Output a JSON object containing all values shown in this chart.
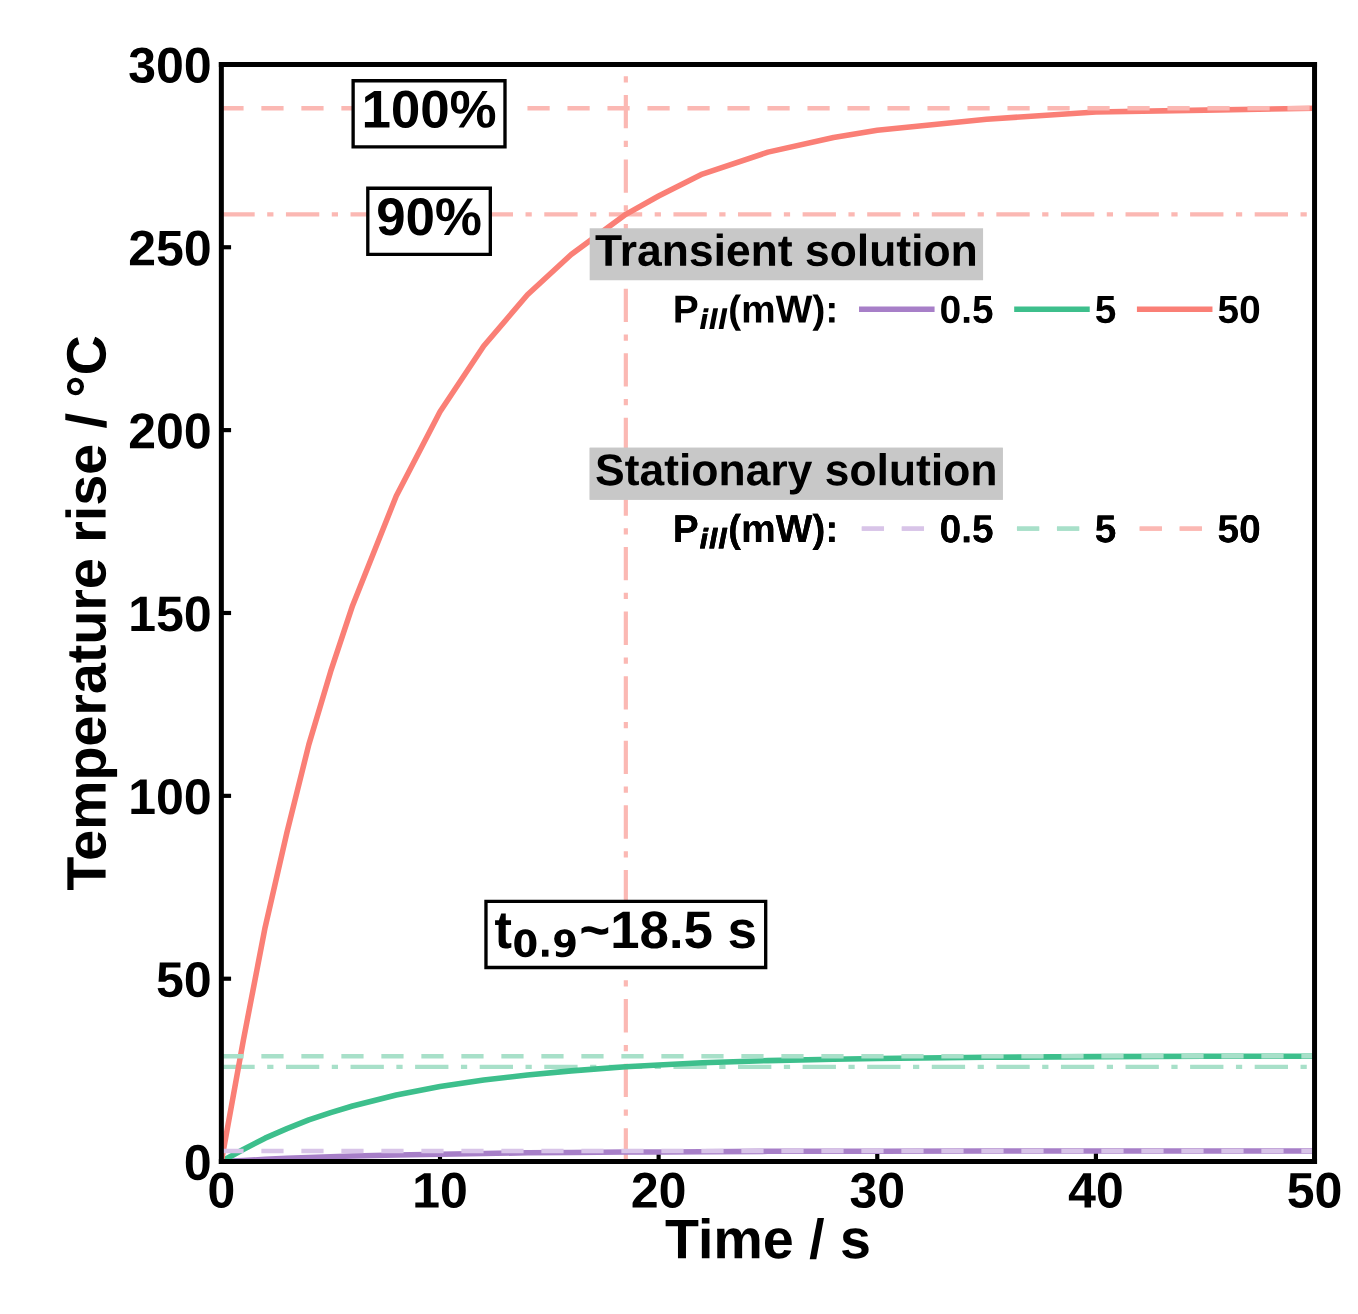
{
  "chart_data": {
    "type": "line",
    "xlabel": "Time / s",
    "ylabel": "Temperature rise / °C",
    "xlim": [
      0,
      50
    ],
    "ylim": [
      0,
      300
    ],
    "xticks": [
      0,
      10,
      20,
      30,
      40,
      50
    ],
    "yticks": [
      0,
      50,
      100,
      150,
      200,
      250,
      300
    ],
    "grid": false,
    "legend": "top right",
    "marker": "none",
    "x": [
      0,
      1,
      2,
      3,
      4,
      5,
      6,
      8,
      10,
      12,
      14,
      16,
      18.5,
      20,
      22,
      25,
      28,
      30,
      35,
      40,
      45,
      50
    ],
    "series": [
      {
        "name": "0.5",
        "color": "#a77fc8",
        "line_style": "solid",
        "values": [
          0,
          0.3,
          0.6,
          0.9,
          1.1,
          1.3,
          1.5,
          1.8,
          2.0,
          2.2,
          2.4,
          2.5,
          2.6,
          2.6,
          2.7,
          2.8,
          2.8,
          2.8,
          2.9,
          2.9,
          2.9,
          2.9
        ]
      },
      {
        "name": "5",
        "color": "#3dbf8c",
        "line_style": "solid",
        "values": [
          0,
          3.3,
          6.4,
          9.0,
          11.4,
          13.4,
          15.2,
          18.2,
          20.5,
          22.3,
          23.7,
          24.8,
          25.9,
          26.4,
          27.0,
          27.6,
          28.0,
          28.2,
          28.5,
          28.7,
          28.8,
          28.8
        ]
      },
      {
        "name": "50",
        "color": "#fa7f76",
        "line_style": "solid",
        "values": [
          0,
          33,
          64,
          90,
          114,
          134,
          152,
          182,
          205,
          223,
          237,
          248,
          259,
          264,
          270,
          276,
          280,
          282,
          285,
          287,
          287.5,
          288
        ]
      },
      {
        "name": "0.5",
        "color": "#d8c4e8",
        "line_style": "dashed",
        "values": [
          2.9,
          2.9,
          2.9,
          2.9,
          2.9,
          2.9,
          2.9,
          2.9,
          2.9,
          2.9,
          2.9,
          2.9,
          2.9,
          2.9,
          2.9,
          2.9,
          2.9,
          2.9,
          2.9,
          2.9,
          2.9,
          2.9
        ]
      },
      {
        "name": "5",
        "color": "#a8e0c9",
        "line_style": "dashed",
        "values": [
          28.8,
          28.8,
          28.8,
          28.8,
          28.8,
          28.8,
          28.8,
          28.8,
          28.8,
          28.8,
          28.8,
          28.8,
          28.8,
          28.8,
          28.8,
          28.8,
          28.8,
          28.8,
          28.8,
          28.8,
          28.8,
          28.8
        ]
      },
      {
        "name": "50",
        "color": "#fbb8b3",
        "line_style": "dashed",
        "values": [
          288,
          288,
          288,
          288,
          288,
          288,
          288,
          null,
          null,
          null,
          288,
          288,
          288,
          288,
          288,
          288,
          288,
          288,
          288,
          288,
          288,
          288
        ]
      }
    ],
    "ref_lines": [
      {
        "axis": "y",
        "value": 259,
        "color": "#fbb8b3",
        "line_style": "dashdot"
      },
      {
        "axis": "y",
        "value": 25.9,
        "color": "#a8e0c9",
        "line_style": "dashdot"
      },
      {
        "axis": "x",
        "value": 18.5,
        "color": "#fbb8b3",
        "line_style": "dashdot"
      }
    ],
    "annotations": [
      "100%",
      "90%",
      "t$_{0.9}$~18.5 s",
      "Transient solution",
      "Stationary solution",
      "P$_{ill}$(mW):",
      "P$_{ill}$(mW):"
    ]
  }
}
